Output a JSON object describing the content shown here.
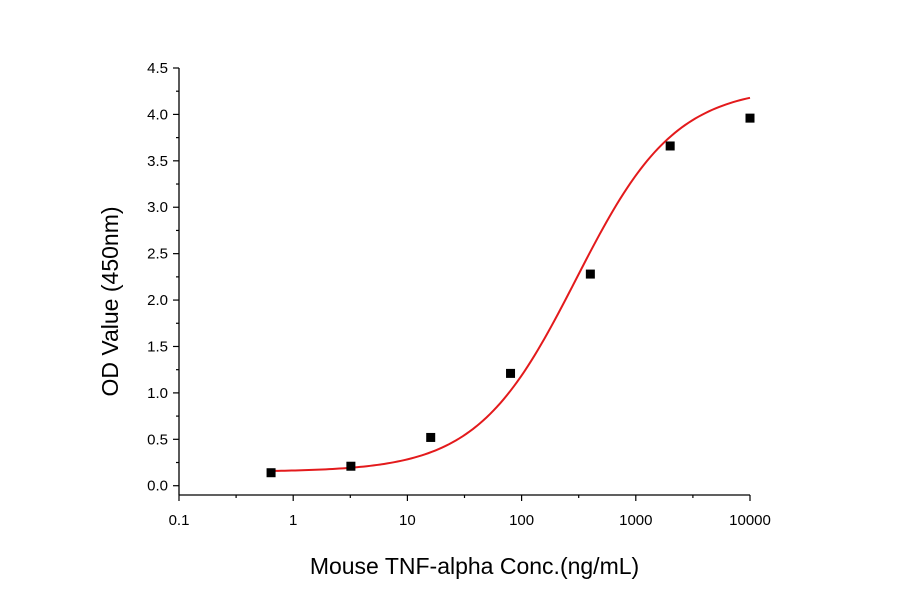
{
  "chart_data": {
    "type": "scatter",
    "title": "",
    "xlabel": "Mouse TNF-alpha Conc.(ng/mL)",
    "ylabel": "OD Value (450nm)",
    "xscale": "log",
    "xlim": [
      0.1,
      10000
    ],
    "ylim": [
      -0.1,
      4.5
    ],
    "x_ticks": [
      0.1,
      1,
      10,
      100,
      1000,
      10000
    ],
    "x_tick_labels": [
      "0.1",
      "1",
      "10",
      "100",
      "1000",
      "10000"
    ],
    "y_ticks": [
      0.0,
      0.5,
      1.0,
      1.5,
      2.0,
      2.5,
      3.0,
      3.5,
      4.0,
      4.5
    ],
    "y_tick_labels": [
      "0.0",
      "0.5",
      "1.0",
      "1.5",
      "2.0",
      "2.5",
      "3.0",
      "3.5",
      "4.0",
      "4.5"
    ],
    "grid": false,
    "series": [
      {
        "type": "scatter",
        "marker": "square",
        "color": "#000000",
        "x": [
          0.64,
          3.2,
          16,
          80,
          400,
          2000,
          10000
        ],
        "y": [
          0.14,
          0.21,
          0.52,
          1.21,
          2.28,
          3.66,
          3.96
        ]
      },
      {
        "type": "line",
        "color": "#e31a1c",
        "fit": "4PL",
        "params": {
          "A": 0.15,
          "D": 4.3,
          "C": 300,
          "B": 1.0
        },
        "x_range": [
          0.64,
          10000
        ]
      }
    ]
  }
}
